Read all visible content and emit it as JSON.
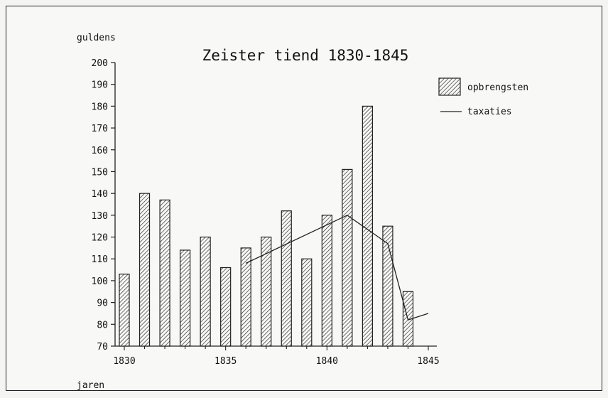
{
  "chart_data": {
    "type": "bar",
    "title": "Zeister tiend 1830-1845",
    "ylabel": "guldens",
    "xlabel": "jaren",
    "ylim": [
      70,
      200
    ],
    "yticks": [
      "70",
      "80",
      "90",
      "100",
      "110",
      "120",
      "130",
      "140",
      "150",
      "160",
      "170",
      "180",
      "190",
      "200"
    ],
    "xlim": [
      1830,
      1845
    ],
    "xticks": [
      "1830",
      "1835",
      "1840",
      "1845"
    ],
    "series": [
      {
        "name": "opbrengsten",
        "kind": "bar",
        "x": [
          1830,
          1831,
          1832,
          1833,
          1834,
          1835,
          1836,
          1837,
          1838,
          1839,
          1840,
          1841,
          1842,
          1843,
          1844
        ],
        "values": [
          103,
          140,
          137,
          114,
          120,
          106,
          115,
          120,
          132,
          110,
          130,
          151,
          180,
          125,
          95
        ]
      },
      {
        "name": "taxaties",
        "kind": "line",
        "x": [
          1836,
          1841,
          1843,
          1844,
          1845
        ],
        "values": [
          108,
          130,
          117,
          82,
          85
        ]
      }
    ],
    "legend_position": "top-right",
    "grid": false
  }
}
